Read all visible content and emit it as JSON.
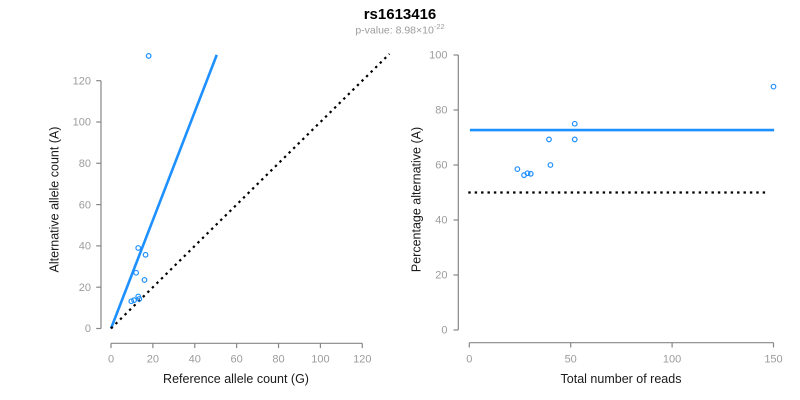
{
  "header": {
    "title": "rs1613416",
    "pvalue_prefix": "p-value: 8.98×10",
    "pvalue_exponent": "-22"
  },
  "colors": {
    "accent_blue": "#1E90FF",
    "dotted_black": "#000000",
    "axis_line": "#878787",
    "tick_label": "#9c9c9c",
    "axis_title": "#1a1a1a",
    "title": "#000000",
    "subtitle": "#9c9c9c",
    "background": "#ffffff"
  },
  "chart_data": [
    {
      "type": "scatter",
      "panel": "left",
      "title": "",
      "xlabel": "Reference allele count (G)",
      "ylabel": "Alternative allele count (A)",
      "xticks": [
        0,
        20,
        40,
        60,
        80,
        100,
        120
      ],
      "yticks": [
        0,
        20,
        40,
        60,
        80,
        100,
        120
      ],
      "xlim": [
        0,
        135
      ],
      "ylim": [
        0,
        135
      ],
      "grid": false,
      "legend": "none",
      "points": [
        [
          18,
          132
        ],
        [
          13,
          39
        ],
        [
          16.5,
          35.7
        ],
        [
          12,
          27
        ],
        [
          16,
          23.5
        ],
        [
          13,
          15.5
        ],
        [
          13.5,
          14.3
        ],
        [
          11,
          13.7
        ],
        [
          9.7,
          13.2
        ]
      ],
      "lines": [
        {
          "name": "fit-line",
          "style": "solid",
          "color_key": "accent_blue",
          "x1": 0,
          "y1": 0,
          "x2": 50.5,
          "y2": 132.5
        },
        {
          "name": "identity-line",
          "style": "dotted",
          "color_key": "dotted_black",
          "x1": 0,
          "y1": 0,
          "x2": 133,
          "y2": 133
        }
      ]
    },
    {
      "type": "scatter",
      "panel": "right",
      "title": "",
      "xlabel": "Total number of reads",
      "ylabel": "Percentage alternative (A)",
      "xticks": [
        0,
        50,
        100,
        150
      ],
      "yticks": [
        0,
        20,
        40,
        60,
        80,
        100
      ],
      "xlim": [
        0,
        152
      ],
      "ylim": [
        0,
        100
      ],
      "grid": false,
      "legend": "none",
      "points": [
        [
          150,
          88.5
        ],
        [
          52,
          75
        ],
        [
          52,
          69.3
        ],
        [
          39.3,
          69.3
        ],
        [
          40,
          60
        ],
        [
          23.7,
          58.5
        ],
        [
          27,
          56.3
        ],
        [
          28.7,
          57
        ],
        [
          30.3,
          56.8
        ]
      ],
      "lines": [
        {
          "name": "mean-line",
          "style": "solid",
          "color_key": "accent_blue",
          "x1": 0.3,
          "y1": 72.7,
          "x2": 150.3,
          "y2": 72.7
        },
        {
          "name": "expected-line",
          "style": "dotted",
          "color_key": "dotted_black",
          "x1": -0.5,
          "y1": 50,
          "x2": 147,
          "y2": 50
        }
      ]
    }
  ]
}
